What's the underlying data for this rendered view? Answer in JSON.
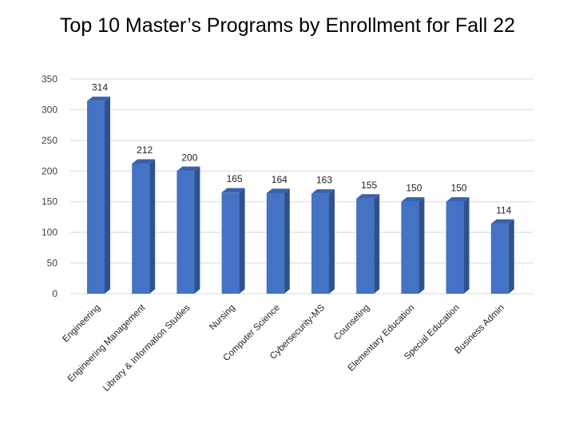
{
  "chart_data": {
    "type": "bar",
    "title": "Top 10 Master’s Programs by Enrollment for Fall 22",
    "categories": [
      "Engineering",
      "Engineering Management",
      "Library & Information Studies",
      "Nursing",
      "Computer Science",
      "Cybersecurity-MS",
      "Counseling",
      "Elementary Education",
      "Special Education",
      "Business Admin"
    ],
    "values": [
      314,
      212,
      200,
      165,
      164,
      163,
      155,
      150,
      150,
      114
    ],
    "ylim": [
      0,
      350
    ],
    "yticks": [
      0,
      50,
      100,
      150,
      200,
      250,
      300,
      350
    ],
    "grid": true,
    "legend": "none",
    "data_labels": true,
    "colors": {
      "bar_front": "#4472C4",
      "bar_side": "#2F528F",
      "bar_top": "#3A62AB",
      "grid": "#D9D9D9"
    }
  }
}
